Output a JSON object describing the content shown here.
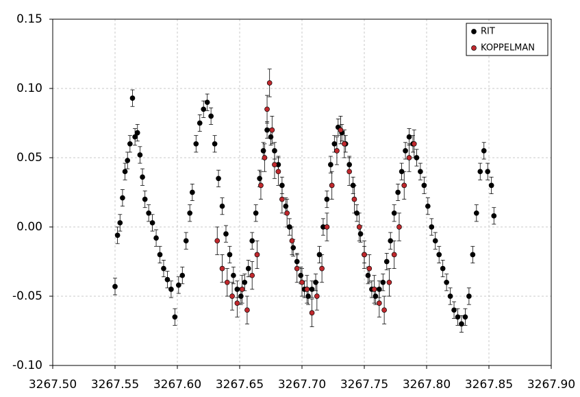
{
  "chart_data": {
    "type": "scatter",
    "xlim": [
      3267.5,
      3267.9
    ],
    "xticks": [
      {
        "value": 3267.5,
        "label": "3267.50"
      },
      3267.55,
      {
        "value": 3267.6,
        "label": "3267.60"
      },
      3267.65,
      {
        "value": 3267.7,
        "label": "3267.70"
      },
      3267.75,
      {
        "value": 3267.8,
        "label": "3267.80"
      },
      3267.85,
      {
        "value": 3267.9,
        "label": "3267.90"
      }
    ],
    "ylim": [
      -0.1,
      0.15
    ],
    "yticks": [
      {
        "value": -0.1,
        "label": "-0.10"
      },
      -0.05,
      {
        "value": 0,
        "label": "0.00"
      },
      0.05,
      {
        "value": 0.1,
        "label": "0.10"
      },
      0.15
    ],
    "grid": true,
    "legend": "upper right",
    "series": [
      {
        "name": "RIT",
        "color": "#000000",
        "error": 0.006,
        "x": [
          3267.55,
          3267.552,
          3267.554,
          3267.556,
          3267.558,
          3267.56,
          3267.562,
          3267.564,
          3267.566,
          3267.568,
          3267.57,
          3267.572,
          3267.574,
          3267.577,
          3267.58,
          3267.583,
          3267.586,
          3267.589,
          3267.592,
          3267.595,
          3267.598,
          3267.601,
          3267.604,
          3267.607,
          3267.61,
          3267.612,
          3267.615,
          3267.618,
          3267.621,
          3267.624,
          3267.627,
          3267.63,
          3267.633,
          3267.636,
          3267.639,
          3267.642,
          3267.645,
          3267.648,
          3267.651,
          3267.654,
          3267.657,
          3267.66,
          3267.663,
          3267.666,
          3267.669,
          3267.672,
          3267.675,
          3267.678,
          3267.681,
          3267.684,
          3267.687,
          3267.69,
          3267.693,
          3267.696,
          3267.699,
          3267.702,
          3267.705,
          3267.708,
          3267.711,
          3267.714,
          3267.717,
          3267.72,
          3267.723,
          3267.726,
          3267.729,
          3267.732,
          3267.735,
          3267.738,
          3267.741,
          3267.744,
          3267.747,
          3267.75,
          3267.753,
          3267.756,
          3267.759,
          3267.762,
          3267.765,
          3267.768,
          3267.771,
          3267.774,
          3267.777,
          3267.78,
          3267.783,
          3267.786,
          3267.789,
          3267.792,
          3267.795,
          3267.798,
          3267.801,
          3267.804,
          3267.807,
          3267.81,
          3267.813,
          3267.816,
          3267.819,
          3267.822,
          3267.825,
          3267.828,
          3267.831,
          3267.834,
          3267.837,
          3267.84,
          3267.843,
          3267.846,
          3267.849,
          3267.852,
          3267.854
        ],
        "values": [
          -0.043,
          -0.006,
          0.003,
          0.021,
          0.04,
          0.048,
          0.06,
          0.093,
          0.065,
          0.068,
          0.052,
          0.036,
          0.02,
          0.01,
          0.003,
          -0.008,
          -0.02,
          -0.03,
          -0.038,
          -0.045,
          -0.065,
          -0.042,
          -0.035,
          -0.01,
          0.01,
          0.025,
          0.06,
          0.075,
          0.085,
          0.09,
          0.08,
          0.06,
          0.035,
          0.015,
          -0.005,
          -0.02,
          -0.035,
          -0.045,
          -0.05,
          -0.04,
          -0.03,
          -0.01,
          0.01,
          0.035,
          0.055,
          0.07,
          0.065,
          0.055,
          0.045,
          0.03,
          0.015,
          0.0,
          -0.015,
          -0.025,
          -0.035,
          -0.045,
          -0.05,
          -0.045,
          -0.04,
          -0.02,
          0.0,
          0.02,
          0.045,
          0.06,
          0.072,
          0.068,
          0.06,
          0.045,
          0.03,
          0.01,
          -0.005,
          -0.02,
          -0.035,
          -0.045,
          -0.05,
          -0.045,
          -0.04,
          -0.025,
          -0.01,
          0.01,
          0.025,
          0.04,
          0.055,
          0.065,
          0.06,
          0.05,
          0.04,
          0.03,
          0.015,
          0.0,
          -0.01,
          -0.02,
          -0.03,
          -0.04,
          -0.05,
          -0.06,
          -0.065,
          -0.07,
          -0.065,
          -0.05,
          -0.02,
          0.01,
          0.04,
          0.055,
          0.04,
          0.03,
          0.008
        ]
      },
      {
        "name": "KOPPELMAN",
        "color": "#c0282d",
        "error": 0.01,
        "x": [
          3267.632,
          3267.636,
          3267.64,
          3267.644,
          3267.648,
          3267.652,
          3267.656,
          3267.66,
          3267.664,
          3267.667,
          3267.67,
          3267.672,
          3267.674,
          3267.676,
          3267.678,
          3267.681,
          3267.684,
          3267.688,
          3267.692,
          3267.696,
          3267.7,
          3267.704,
          3267.708,
          3267.712,
          3267.716,
          3267.72,
          3267.724,
          3267.728,
          3267.731,
          3267.734,
          3267.738,
          3267.742,
          3267.746,
          3267.75,
          3267.754,
          3267.758,
          3267.762,
          3267.766,
          3267.77,
          3267.774,
          3267.778,
          3267.782,
          3267.786,
          3267.79
        ],
        "values": [
          -0.01,
          -0.03,
          -0.04,
          -0.05,
          -0.055,
          -0.045,
          -0.06,
          -0.035,
          -0.02,
          0.03,
          0.05,
          0.085,
          0.104,
          0.07,
          0.045,
          0.04,
          0.02,
          0.01,
          -0.01,
          -0.03,
          -0.04,
          -0.045,
          -0.062,
          -0.05,
          -0.03,
          0.0,
          0.03,
          0.055,
          0.07,
          0.06,
          0.04,
          0.02,
          0.0,
          -0.02,
          -0.03,
          -0.045,
          -0.055,
          -0.06,
          -0.04,
          -0.02,
          0.0,
          0.03,
          0.05,
          0.06
        ]
      }
    ]
  }
}
